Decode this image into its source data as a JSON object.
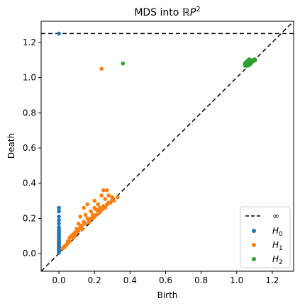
{
  "chart_data": {
    "type": "scatter",
    "title_main": "MDS into ",
    "title_space": "ℝP",
    "title_sup": "2",
    "xlabel": "Birth",
    "ylabel": "Death",
    "xlim": [
      -0.1,
      1.32
    ],
    "ylim": [
      -0.1,
      1.32
    ],
    "xticks": [
      0.0,
      0.2,
      0.4,
      0.6,
      0.8,
      1.0,
      1.2
    ],
    "yticks": [
      0.0,
      0.2,
      0.4,
      0.6,
      0.8,
      1.0,
      1.2
    ],
    "x_tick_labels": [
      "0.0",
      "0.2",
      "0.4",
      "0.6",
      "0.8",
      "1.0",
      "1.2"
    ],
    "y_tick_labels": [
      "0.0",
      "0.2",
      "0.4",
      "0.6",
      "0.8",
      "1.0",
      "1.2"
    ],
    "infinity_death": 1.25,
    "diagonal": true,
    "legend_placement": "lower-right",
    "legend_infinity_label": "∞",
    "series": [
      {
        "key": "H",
        "sub": "0",
        "color": "#1f77b4",
        "points": [
          [
            0,
            1.25
          ],
          [
            0,
            0.26
          ],
          [
            0,
            0.24
          ],
          [
            0,
            0.21
          ],
          [
            0,
            0.19
          ],
          [
            0,
            0.17
          ],
          [
            0,
            0.15
          ],
          [
            0,
            0.14
          ],
          [
            0,
            0.13
          ],
          [
            0,
            0.12
          ],
          [
            0,
            0.11
          ],
          [
            0,
            0.1
          ],
          [
            0,
            0.09
          ],
          [
            0,
            0.085
          ],
          [
            0,
            0.08
          ],
          [
            0,
            0.075
          ],
          [
            0,
            0.07
          ],
          [
            0,
            0.065
          ],
          [
            0,
            0.06
          ],
          [
            0,
            0.055
          ],
          [
            0,
            0.05
          ],
          [
            0,
            0.045
          ],
          [
            0,
            0.04
          ],
          [
            0,
            0.035
          ],
          [
            0,
            0.03
          ],
          [
            0,
            0.025
          ],
          [
            0,
            0.02
          ],
          [
            0,
            0.015
          ],
          [
            0,
            0.01
          ],
          [
            0,
            0.005
          ]
        ]
      },
      {
        "key": "H",
        "sub": "1",
        "color": "#ff7f0e",
        "points": [
          [
            0.24,
            1.05
          ],
          [
            0.25,
            0.36
          ],
          [
            0.27,
            0.36
          ],
          [
            0.24,
            0.33
          ],
          [
            0.28,
            0.33
          ],
          [
            0.3,
            0.32
          ],
          [
            0.2,
            0.3
          ],
          [
            0.26,
            0.31
          ],
          [
            0.33,
            0.32
          ],
          [
            0.22,
            0.28
          ],
          [
            0.28,
            0.29
          ],
          [
            0.31,
            0.3
          ],
          [
            0.16,
            0.28
          ],
          [
            0.2,
            0.26
          ],
          [
            0.14,
            0.26
          ],
          [
            0.25,
            0.27
          ],
          [
            0.27,
            0.28
          ],
          [
            0.29,
            0.29
          ],
          [
            0.18,
            0.24
          ],
          [
            0.21,
            0.25
          ],
          [
            0.23,
            0.26
          ],
          [
            0.15,
            0.22
          ],
          [
            0.19,
            0.22
          ],
          [
            0.24,
            0.25
          ],
          [
            0.26,
            0.26
          ],
          [
            0.12,
            0.21
          ],
          [
            0.16,
            0.2
          ],
          [
            0.2,
            0.21
          ],
          [
            0.14,
            0.18
          ],
          [
            0.18,
            0.2
          ],
          [
            0.11,
            0.17
          ],
          [
            0.13,
            0.16
          ],
          [
            0.15,
            0.17
          ],
          [
            0.1,
            0.14
          ],
          [
            0.12,
            0.15
          ],
          [
            0.17,
            0.19
          ],
          [
            0.09,
            0.12
          ],
          [
            0.11,
            0.13
          ],
          [
            0.13,
            0.14
          ],
          [
            0.22,
            0.24
          ],
          [
            0.07,
            0.1
          ],
          [
            0.08,
            0.11
          ],
          [
            0.1,
            0.12
          ],
          [
            0.06,
            0.09
          ],
          [
            0.08,
            0.09
          ],
          [
            0.05,
            0.07
          ],
          [
            0.06,
            0.07
          ],
          [
            0.04,
            0.05
          ],
          [
            0.05,
            0.06
          ],
          [
            0.03,
            0.04
          ],
          [
            0.04,
            0.045
          ],
          [
            0.02,
            0.03
          ],
          [
            0.03,
            0.035
          ],
          [
            0.09,
            0.1
          ],
          [
            0.17,
            0.18
          ],
          [
            0.21,
            0.22
          ],
          [
            0.28,
            0.285
          ],
          [
            0.3,
            0.31
          ],
          [
            0.19,
            0.2
          ],
          [
            0.23,
            0.235
          ]
        ]
      },
      {
        "key": "H",
        "sub": "2",
        "color": "#2ca02c",
        "points": [
          [
            0.36,
            1.08
          ],
          [
            1.06,
            1.09
          ],
          [
            1.07,
            1.09
          ],
          [
            1.06,
            1.08
          ],
          [
            1.08,
            1.09
          ],
          [
            1.07,
            1.08
          ],
          [
            1.05,
            1.08
          ],
          [
            1.06,
            1.075
          ],
          [
            1.08,
            1.085
          ],
          [
            1.09,
            1.095
          ],
          [
            1.07,
            1.075
          ],
          [
            1.05,
            1.07
          ],
          [
            1.06,
            1.07
          ],
          [
            1.1,
            1.1
          ],
          [
            1.07,
            1.1
          ]
        ]
      }
    ]
  }
}
